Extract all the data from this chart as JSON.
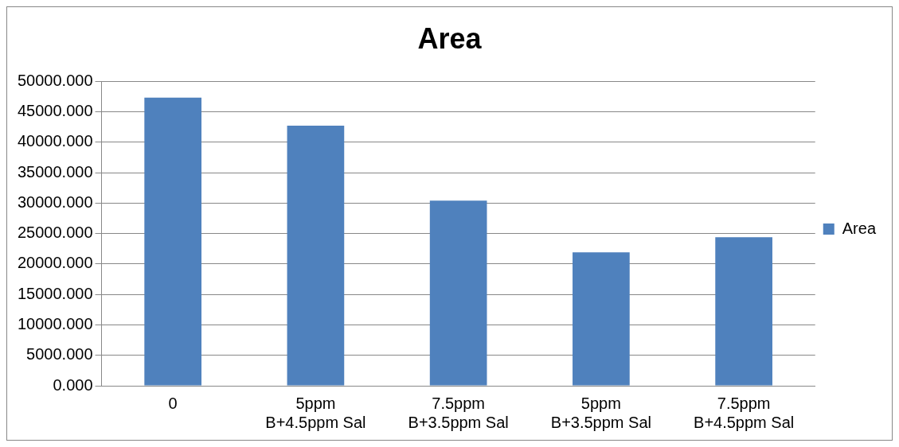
{
  "chart_data": {
    "type": "bar",
    "title": "Area",
    "categories": [
      "0",
      "5ppm\nB+4.5ppm Sal",
      "7.5ppm\nB+3.5ppm Sal",
      "5ppm\nB+3.5ppm Sal",
      "7.5ppm\nB+4.5ppm Sal"
    ],
    "series": [
      {
        "name": "Area",
        "color": "#4f81bd",
        "values": [
          47300,
          42700,
          30400,
          21900,
          24400
        ]
      }
    ],
    "ylim": [
      0,
      50000
    ],
    "yticks": [
      {
        "value": 0,
        "label": "0.000"
      },
      {
        "value": 5000,
        "label": "5000.000"
      },
      {
        "value": 10000,
        "label": "10000.000"
      },
      {
        "value": 15000,
        "label": "15000.000"
      },
      {
        "value": 20000,
        "label": "20000.000"
      },
      {
        "value": 25000,
        "label": "25000.000"
      },
      {
        "value": 30000,
        "label": "30000.000"
      },
      {
        "value": 35000,
        "label": "35000.000"
      },
      {
        "value": 40000,
        "label": "40000.000"
      },
      {
        "value": 45000,
        "label": "45000.000"
      },
      {
        "value": 50000,
        "label": "50000.000"
      }
    ],
    "grid": "y",
    "legend": "right"
  }
}
